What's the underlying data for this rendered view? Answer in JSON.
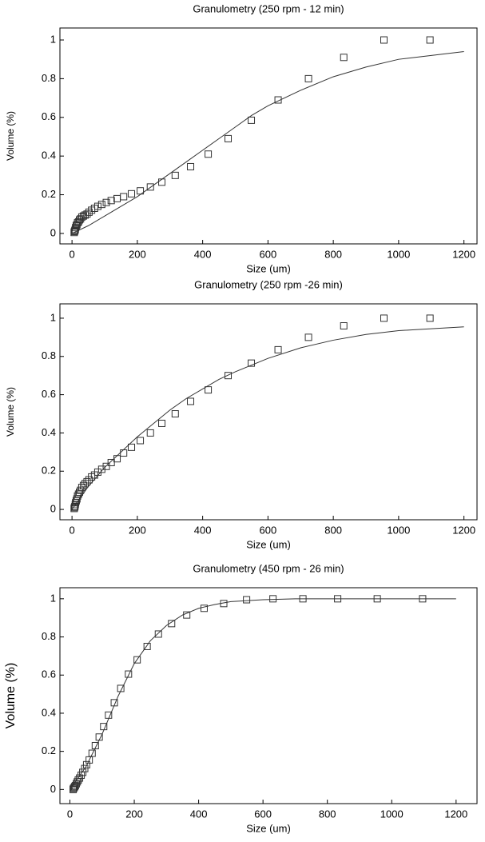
{
  "chart_data": [
    {
      "type": "scatter",
      "title": "Granulometry (250 rpm - 12 min)",
      "x_label": "Size (um)",
      "y_label": "Volume (%)",
      "xlim": [
        -37,
        1240
      ],
      "ylim": [
        -0.054,
        1.062
      ],
      "xticks": [
        0,
        200,
        400,
        600,
        800,
        1000,
        1200
      ],
      "yticks": [
        0,
        0.2,
        0.4,
        0.6,
        0.8,
        1
      ],
      "series": [
        {
          "type": "scatter",
          "marker": "square",
          "color": "#333333",
          "x": [
            1096,
            955,
            832,
            724,
            631,
            549,
            478,
            417,
            363,
            316,
            275,
            240,
            209,
            182,
            158,
            138,
            120,
            105,
            91,
            79,
            69,
            60,
            52,
            46,
            40,
            35,
            30,
            26,
            23,
            20,
            17,
            15,
            13,
            11,
            10,
            8.7,
            7.6,
            6.6
          ],
          "values": [
            1.0,
            1.0,
            0.91,
            0.8,
            0.69,
            0.585,
            0.49,
            0.41,
            0.345,
            0.3,
            0.265,
            0.24,
            0.22,
            0.205,
            0.19,
            0.18,
            0.17,
            0.16,
            0.15,
            0.14,
            0.13,
            0.12,
            0.11,
            0.1,
            0.095,
            0.09,
            0.085,
            0.075,
            0.07,
            0.06,
            0.055,
            0.045,
            0.04,
            0.03,
            0.02,
            0.015,
            0.01,
            0.005
          ]
        },
        {
          "type": "line",
          "color": "#333333",
          "x": [
            0,
            50,
            100,
            150,
            200,
            250,
            300,
            350,
            400,
            450,
            500,
            550,
            600,
            700,
            800,
            900,
            1000,
            1100,
            1200
          ],
          "values": [
            0,
            0.04,
            0.09,
            0.14,
            0.19,
            0.25,
            0.31,
            0.37,
            0.43,
            0.49,
            0.55,
            0.61,
            0.66,
            0.74,
            0.81,
            0.86,
            0.9,
            0.92,
            0.94
          ]
        }
      ]
    },
    {
      "type": "scatter",
      "title": "Granulometry (250 rpm -26 min)",
      "x_label": "Size (um)",
      "y_label": "Volume (%)",
      "xlim": [
        -37,
        1240
      ],
      "ylim": [
        -0.054,
        1.075
      ],
      "xticks": [
        0,
        200,
        400,
        600,
        800,
        1000,
        1200
      ],
      "yticks": [
        0,
        0.2,
        0.4,
        0.6,
        0.8,
        1
      ],
      "series": [
        {
          "type": "scatter",
          "marker": "square",
          "color": "#333333",
          "x": [
            1096,
            955,
            832,
            724,
            631,
            549,
            478,
            417,
            363,
            316,
            275,
            240,
            209,
            182,
            158,
            138,
            120,
            105,
            91,
            79,
            69,
            60,
            52,
            46,
            40,
            35,
            30,
            26,
            23,
            20,
            17,
            15,
            13,
            11,
            10,
            8.7,
            7.6,
            6.6
          ],
          "values": [
            1.0,
            1.0,
            0.96,
            0.9,
            0.835,
            0.765,
            0.7,
            0.625,
            0.565,
            0.5,
            0.45,
            0.4,
            0.36,
            0.325,
            0.295,
            0.265,
            0.245,
            0.225,
            0.21,
            0.195,
            0.18,
            0.17,
            0.155,
            0.145,
            0.135,
            0.125,
            0.115,
            0.1,
            0.09,
            0.08,
            0.07,
            0.055,
            0.045,
            0.035,
            0.025,
            0.015,
            0.01,
            0.005
          ]
        },
        {
          "type": "line",
          "color": "#333333",
          "x": [
            0,
            50,
            100,
            150,
            200,
            250,
            300,
            350,
            400,
            450,
            500,
            600,
            700,
            800,
            900,
            1000,
            1100,
            1200
          ],
          "values": [
            0,
            0.12,
            0.22,
            0.3,
            0.38,
            0.45,
            0.52,
            0.58,
            0.63,
            0.68,
            0.72,
            0.79,
            0.845,
            0.885,
            0.915,
            0.935,
            0.945,
            0.955
          ]
        }
      ]
    },
    {
      "type": "scatter",
      "title": "Granulometry (450 rpm - 26 min)",
      "x_label": "Size (um)",
      "y_label": "Volume (%)",
      "xlim": [
        -31,
        1265
      ],
      "ylim": [
        -0.074,
        1.058
      ],
      "xticks": [
        0,
        200,
        400,
        600,
        800,
        1000,
        1200
      ],
      "yticks": [
        0,
        0.2,
        0.4,
        0.6,
        0.8,
        1
      ],
      "series": [
        {
          "type": "scatter",
          "marker": "square",
          "color": "#333333",
          "x": [
            1096,
            955,
            832,
            724,
            631,
            549,
            478,
            417,
            363,
            316,
            275,
            240,
            209,
            182,
            158,
            138,
            120,
            105,
            91,
            79,
            69,
            60,
            52,
            46,
            40,
            35,
            30,
            26,
            23,
            20,
            17,
            15,
            13,
            11,
            10
          ],
          "values": [
            1,
            1,
            1,
            1,
            1,
            0.995,
            0.975,
            0.95,
            0.915,
            0.87,
            0.815,
            0.75,
            0.68,
            0.605,
            0.53,
            0.455,
            0.39,
            0.33,
            0.275,
            0.23,
            0.19,
            0.155,
            0.13,
            0.11,
            0.09,
            0.075,
            0.06,
            0.05,
            0.04,
            0.03,
            0.02,
            0.015,
            0.01,
            0.005,
            0
          ]
        },
        {
          "type": "line",
          "color": "#333333",
          "x": [
            0,
            50,
            100,
            150,
            200,
            250,
            300,
            350,
            400,
            450,
            500,
            600,
            700,
            1200
          ],
          "values": [
            0,
            0.12,
            0.29,
            0.49,
            0.66,
            0.78,
            0.86,
            0.915,
            0.95,
            0.97,
            0.985,
            0.995,
            1,
            1
          ]
        }
      ]
    }
  ]
}
